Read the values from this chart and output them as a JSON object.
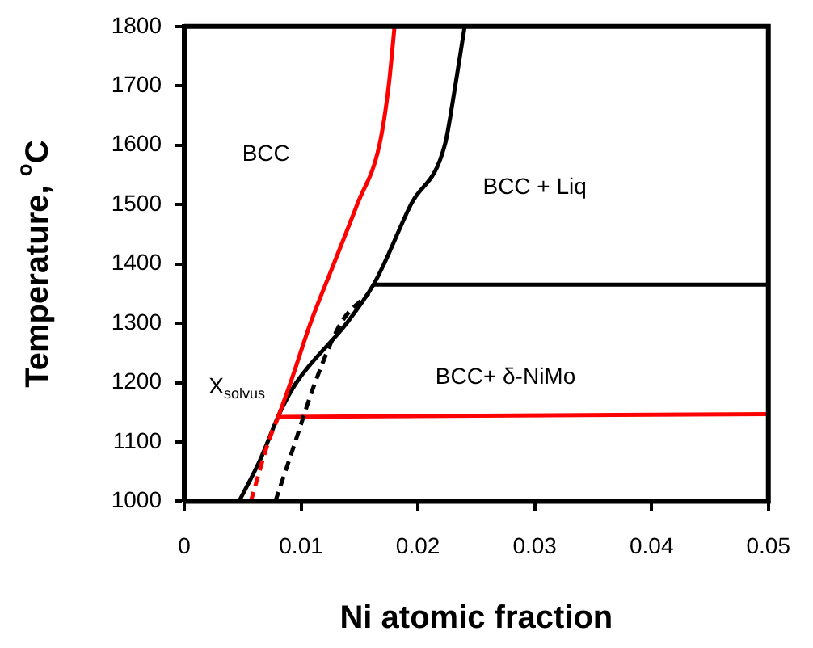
{
  "chart_data": {
    "type": "line",
    "xlabel": "Ni atomic fraction",
    "ylabel": "Temperature, $^{o}$C",
    "xlim": [
      0,
      0.05
    ],
    "xticks": [
      0,
      0.01,
      0.02,
      0.03,
      0.04,
      0.05
    ],
    "ylim": [
      1000,
      1800
    ],
    "yticks": [
      1000,
      1100,
      1200,
      1300,
      1400,
      1500,
      1600,
      1700,
      1800
    ],
    "grid": false,
    "legend": false,
    "marker": "none",
    "series": [
      {
        "color": "#ff0000",
        "line_style": "solid",
        "x": [
          0.008,
          0.0091,
          0.0108,
          0.0128,
          0.0148,
          0.0167,
          0.0175,
          0.018
        ],
        "values": [
          1140,
          1200,
          1300,
          1400,
          1500,
          1600,
          1700,
          1800
        ]
      },
      {
        "color": "#ff0000",
        "line_style": "dashed",
        "x": [
          0.0057,
          0.0072,
          0.008
        ],
        "values": [
          1000,
          1100,
          1140
        ]
      },
      {
        "color": "#000000",
        "line_style": "solid",
        "x": [
          0.0047,
          0.0065,
          0.0082,
          0.0096,
          0.0139,
          0.0162,
          0.0171,
          0.0194,
          0.0223,
          0.0232,
          0.024
        ],
        "values": [
          1000,
          1070,
          1150,
          1200,
          1300,
          1365,
          1400,
          1500,
          1600,
          1700,
          1800
        ]
      },
      {
        "color": "#000000",
        "line_style": "solid",
        "x": [
          0.0162,
          0.05
        ],
        "values": [
          1365,
          1365
        ]
      },
      {
        "color": "#000000",
        "line_style": "dashed",
        "x": [
          0.0078,
          0.0095,
          0.0112,
          0.0134,
          0.0158
        ],
        "values": [
          1000,
          1100,
          1200,
          1300,
          1350
        ]
      },
      {
        "color": "#ff0000",
        "line_style": "solid",
        "x": [
          0.0082,
          0.05
        ],
        "values": [
          1142,
          1147
        ]
      }
    ],
    "annotations": [
      "BCC",
      "BCC + Liq",
      "BCC+ δ-NiMo",
      "X$_{solvus}$"
    ]
  }
}
